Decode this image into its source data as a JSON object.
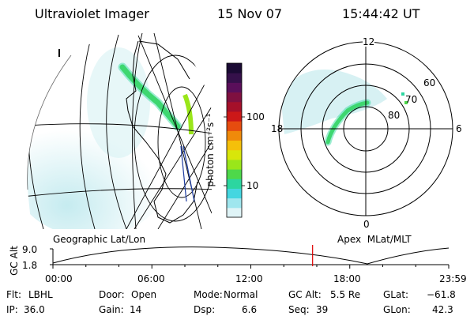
{
  "header": {
    "instrument": "Ultraviolet Imager",
    "date": "15 Nov 07",
    "time": "15:44:42 UT"
  },
  "colorbar": {
    "label": "photon cm⁻²s⁻¹",
    "ticks": [
      "100",
      "10"
    ],
    "colors_top_to_bottom": [
      "#1a0a33",
      "#35104a",
      "#5a0f5a",
      "#7f1040",
      "#a5102a",
      "#cc1818",
      "#e64c0f",
      "#f08a0a",
      "#f5c00a",
      "#d8e60a",
      "#9ae61a",
      "#4ed84a",
      "#2cd6a0",
      "#44d6e0",
      "#9fe6ee",
      "#dff4f7"
    ]
  },
  "map_labels": {
    "geo": "Geographic Lat/Lon",
    "apex": "Apex  MLat/MLT"
  },
  "polar": {
    "mlt_top": "12",
    "mlt_right": "6",
    "mlt_bottom": "0",
    "mlt_left": "18",
    "lat_60": "60",
    "lat_70": "70",
    "lat_80": "80"
  },
  "timeline": {
    "ylabel": "GC Alt",
    "ymax": "9.0",
    "ymin": "1.8",
    "ticks": [
      "00:00",
      "06:00",
      "12:00",
      "18:00",
      "23:59"
    ],
    "marker_time_hours": 15.745
  },
  "status": {
    "filter_label": "Flt:",
    "filter_value": "LBHL",
    "door_label": "Door:",
    "door_value": "Open",
    "mode_label": "Mode:",
    "mode_value": "Normal",
    "gcalt_label": "GC Alt:",
    "gcalt_value": "5.5 Re",
    "glat_label": "GLat:",
    "glat_value": "−61.8",
    "ip_label": "IP:",
    "ip_value": "36.0",
    "gain_label": "Gain:",
    "gain_value": "14",
    "dsp_label": "Dsp:",
    "dsp_value": "6.6",
    "seq_label": "Seq:",
    "seq_value": "39",
    "glon_label": "GLon:",
    "glon_value": "42.3"
  }
}
